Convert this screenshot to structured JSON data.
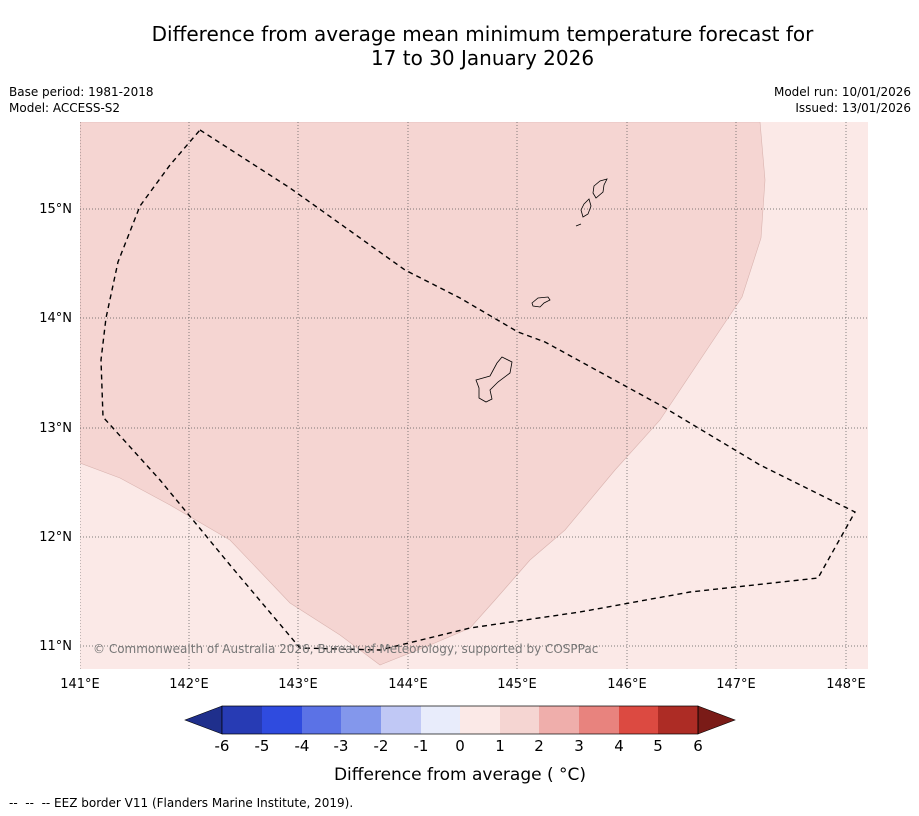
{
  "title": {
    "line1": "Difference from average mean minimum temperature forecast for",
    "line2": "17 to 30 January 2026"
  },
  "meta": {
    "base_period": "Base period: 1981-2018",
    "model": "Model: ACCESS-S2",
    "model_run": "Model run: 10/01/2026",
    "issued": "Issued: 13/01/2026"
  },
  "map": {
    "lon_labels": [
      "141°E",
      "142°E",
      "143°E",
      "144°E",
      "145°E",
      "146°E",
      "147°E",
      "148°E"
    ],
    "lat_labels": [
      "15°N",
      "14°N",
      "13°N",
      "12°N",
      "11°N"
    ],
    "copyright": "© Commonwealth of Australia 2026, Bureau of Meteorology, supported by COSPPac",
    "zone_colors": {
      "light": "#fbe9e7",
      "medium": "#f5d5d2"
    }
  },
  "colorbar": {
    "ticks": [
      "-6",
      "-5",
      "-4",
      "-3",
      "-2",
      "-1",
      "0",
      "1",
      "2",
      "3",
      "4",
      "5",
      "6"
    ],
    "colors": [
      "#1f2f8c",
      "#273bb4",
      "#2f4bdf",
      "#5b72e6",
      "#8397ec",
      "#c0c8f5",
      "#e8ecfb",
      "#fbe9e7",
      "#f5d5d2",
      "#efaeab",
      "#e8837e",
      "#dc4a41",
      "#ad2c25",
      "#7a1b17"
    ],
    "label": "Difference from average ( °C)"
  },
  "legend": {
    "eez": "--  --  -- EEZ border V11 (Flanders Marine Institute, 2019)."
  }
}
